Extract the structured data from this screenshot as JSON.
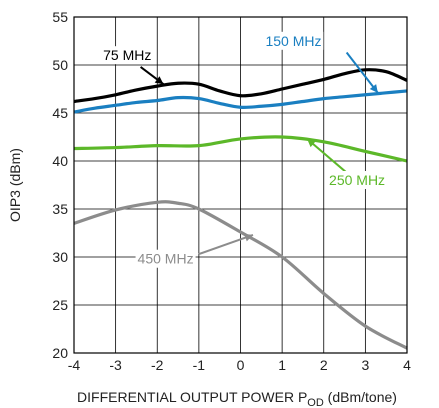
{
  "chart_data": {
    "type": "line",
    "title": "",
    "xlabel_main": "DIFFERENTIAL OUTPUT POWER P",
    "xlabel_sub": "OD",
    "xlabel_tail": " (dBm/tone)",
    "ylabel": "OIP3 (dBm)",
    "xlim": [
      -4,
      4
    ],
    "ylim": [
      20,
      55
    ],
    "xticks": [
      "-4",
      "-3",
      "-2",
      "-1",
      "0",
      "1",
      "2",
      "3",
      "4"
    ],
    "yticks": [
      "20",
      "25",
      "30",
      "35",
      "40",
      "45",
      "50",
      "55"
    ],
    "grid": true,
    "series": [
      {
        "name": "75 MHz",
        "color": "#000000",
        "x": [
          -4,
          -3.5,
          -3,
          -2.5,
          -2,
          -1.5,
          -1,
          -0.5,
          0,
          0.5,
          1,
          1.5,
          2,
          2.5,
          3,
          3.5,
          4
        ],
        "y": [
          46.2,
          46.5,
          46.9,
          47.4,
          47.8,
          48.1,
          48.0,
          47.3,
          46.8,
          47.0,
          47.5,
          48.0,
          48.5,
          49.1,
          49.5,
          49.3,
          48.4
        ]
      },
      {
        "name": "150 MHz",
        "color": "#1a7fc1",
        "x": [
          -4,
          -3.5,
          -3,
          -2.5,
          -2,
          -1.5,
          -1,
          -0.5,
          0,
          0.5,
          1,
          1.5,
          2,
          2.5,
          3,
          3.5,
          4
        ],
        "y": [
          45.1,
          45.5,
          45.8,
          46.1,
          46.3,
          46.6,
          46.5,
          46.0,
          45.6,
          45.7,
          45.9,
          46.2,
          46.5,
          46.7,
          46.9,
          47.1,
          47.3
        ]
      },
      {
        "name": "250 MHz",
        "color": "#5cb829",
        "x": [
          -4,
          -3,
          -2,
          -1,
          0,
          1,
          2,
          3,
          4
        ],
        "y": [
          41.3,
          41.4,
          41.6,
          41.6,
          42.3,
          42.5,
          42.0,
          41.0,
          40.0
        ]
      },
      {
        "name": "450 MHz",
        "color": "#8c8c8c",
        "x": [
          -4,
          -3,
          -2,
          -1.5,
          -1,
          0,
          1,
          2,
          3,
          4
        ],
        "y": [
          33.5,
          34.9,
          35.7,
          35.6,
          35.0,
          32.6,
          30.0,
          26.2,
          22.8,
          20.5
        ]
      }
    ],
    "annotations": [
      {
        "series": "75 MHz",
        "text": "75 MHz"
      },
      {
        "series": "150 MHz",
        "text": "150 MHz"
      },
      {
        "series": "250 MHz",
        "text": "250 MHz"
      },
      {
        "series": "450 MHz",
        "text": "450 MHz"
      }
    ]
  }
}
